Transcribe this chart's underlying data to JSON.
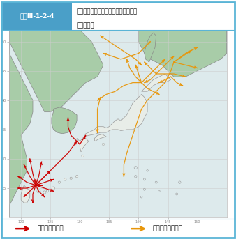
{
  "title_box_label": "図表Ⅲ-1-2-4",
  "title_box_color": "#4a9fc8",
  "title_text1": "絊急発進の対象となった航空機の飛行",
  "title_text2": "パターン例",
  "legend_china": "：中国機の経路",
  "legend_russia": "：ロシア機の経路",
  "china_color": "#cc0000",
  "russia_color": "#e8960a",
  "map_bg_land_asia": "#a8cca8",
  "map_bg_land_japan": "#e8ede8",
  "map_bg_sea": "#ddeaec",
  "map_border_japan": "#999999",
  "map_border_asia": "#888888",
  "grid_color": "#cccccc",
  "xlim": [
    118,
    155
  ],
  "ylim": [
    20,
    52
  ],
  "grid_lons": [
    120,
    125,
    130,
    135,
    140,
    145,
    150
  ],
  "grid_lats": [
    25,
    30,
    35,
    40,
    45,
    50
  ],
  "outer_border": "#5ab4d6",
  "background_color": "#ffffff"
}
